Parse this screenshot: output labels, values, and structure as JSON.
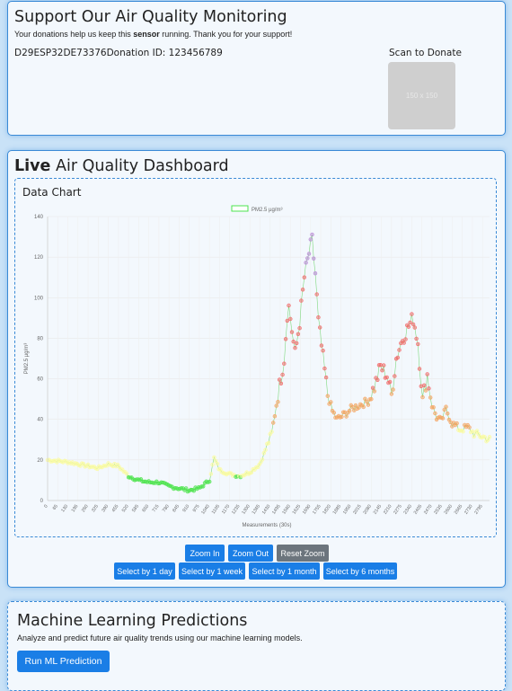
{
  "support": {
    "title": "Support Our Air Quality Monitoring",
    "desc_before": "Your donations help us keep this ",
    "desc_bold": "sensor",
    "desc_after": " running. Thank you for your support!",
    "device_id": "D29ESP32DE73376",
    "donation_id": "Donation ID: 123456789",
    "scan_label": "Scan to Donate",
    "qr_placeholder": "150 x 150"
  },
  "dashboard": {
    "title_bold": "Live",
    "title_rest": " Air Quality Dashboard",
    "chart_title": "Data Chart",
    "buttons": {
      "zoom_in": "Zoom In",
      "zoom_out": "Zoom Out",
      "reset_zoom": "Reset Zoom",
      "day": "Select by 1 day",
      "week": "Select by 1 week",
      "month": "Select by 1 month",
      "six_months": "Select by 6 months"
    }
  },
  "ml": {
    "title": "Machine Learning Predictions",
    "desc": "Analyze and predict future air quality trends using our machine learning models.",
    "button": "Run ML Prediction"
  },
  "chart_data": {
    "type": "scatter",
    "legend": "PM2.5 µg/m³",
    "xlabel": "Measurements (30s)",
    "ylabel": "PM2.5 µg/m³",
    "ylim": [
      0,
      140
    ],
    "yticks": [
      "0",
      "20",
      "40",
      "60",
      "80",
      "100",
      "120",
      "140"
    ],
    "xticks": [
      "0",
      "65",
      "130",
      "195",
      "260",
      "325",
      "390",
      "455",
      "520",
      "585",
      "650",
      "715",
      "780",
      "845",
      "910",
      "975",
      "1040",
      "1105",
      "1170",
      "1235",
      "1300",
      "1365",
      "1430",
      "1495",
      "1560",
      "1625",
      "1690",
      "1755",
      "1820",
      "1885",
      "1950",
      "2015",
      "2080",
      "2145",
      "2210",
      "2275",
      "2340",
      "2405",
      "2470",
      "2535",
      "2600",
      "2665",
      "2730",
      "2795"
    ],
    "xmax": 2840,
    "profile": [
      [
        0,
        20
      ],
      [
        130,
        19
      ],
      [
        260,
        17
      ],
      [
        325,
        16
      ],
      [
        390,
        18
      ],
      [
        455,
        17
      ],
      [
        520,
        12
      ],
      [
        585,
        10
      ],
      [
        650,
        9
      ],
      [
        715,
        9
      ],
      [
        780,
        7
      ],
      [
        845,
        6
      ],
      [
        910,
        5
      ],
      [
        975,
        6
      ],
      [
        1040,
        10
      ],
      [
        1070,
        21
      ],
      [
        1105,
        15
      ],
      [
        1170,
        13
      ],
      [
        1235,
        12
      ],
      [
        1300,
        14
      ],
      [
        1365,
        18
      ],
      [
        1400,
        25
      ],
      [
        1440,
        33
      ],
      [
        1480,
        52
      ],
      [
        1520,
        70
      ],
      [
        1545,
        98
      ],
      [
        1560,
        90
      ],
      [
        1590,
        72
      ],
      [
        1620,
        88
      ],
      [
        1650,
        110
      ],
      [
        1680,
        122
      ],
      [
        1700,
        128
      ],
      [
        1720,
        112
      ],
      [
        1740,
        88
      ],
      [
        1770,
        70
      ],
      [
        1800,
        52
      ],
      [
        1830,
        44
      ],
      [
        1860,
        40
      ],
      [
        1900,
        42
      ],
      [
        1950,
        45
      ],
      [
        2000,
        47
      ],
      [
        2060,
        49
      ],
      [
        2100,
        56
      ],
      [
        2140,
        66
      ],
      [
        2180,
        62
      ],
      [
        2210,
        52
      ],
      [
        2240,
        70
      ],
      [
        2280,
        80
      ],
      [
        2320,
        86
      ],
      [
        2350,
        90
      ],
      [
        2380,
        78
      ],
      [
        2410,
        50
      ],
      [
        2440,
        62
      ],
      [
        2470,
        47
      ],
      [
        2500,
        41
      ],
      [
        2530,
        39
      ],
      [
        2560,
        45
      ],
      [
        2600,
        38
      ],
      [
        2650,
        35
      ],
      [
        2700,
        36
      ],
      [
        2740,
        33
      ],
      [
        2780,
        32
      ],
      [
        2840,
        30
      ]
    ],
    "bands": [
      {
        "max": 12,
        "color": "#4ee44e"
      },
      {
        "max": 35,
        "color": "#fbfba2"
      },
      {
        "max": 55,
        "color": "#f5a462"
      },
      {
        "max": 110,
        "color": "#f26a6a"
      },
      {
        "max": 999,
        "color": "#b98ad6"
      }
    ]
  }
}
